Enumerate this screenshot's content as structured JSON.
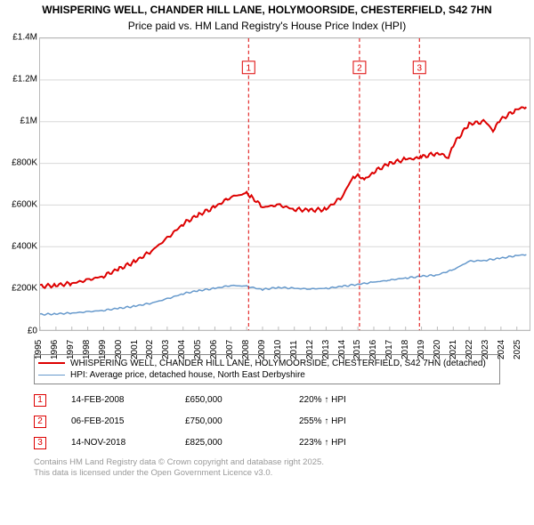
{
  "chart": {
    "title_line1": "WHISPERING WELL, CHANDER HILL LANE, HOLYMOORSIDE, CHESTERFIELD, S42 7HN",
    "title_line2": "Price paid vs. HM Land Registry's House Price Index (HPI)",
    "type": "line",
    "background_color": "#ffffff",
    "plot_border_color": "#bbbbbb",
    "grid_color": "#d8d8d8",
    "label_color": "#000000",
    "label_fontsize": 10,
    "title_fontsize": 12,
    "xlim": [
      1995,
      2025.8
    ],
    "ylim": [
      0,
      1400000
    ],
    "yticks": [
      0,
      200000,
      400000,
      600000,
      800000,
      1000000,
      1200000,
      1400000
    ],
    "ytick_labels": [
      "£0",
      "£200K",
      "£400K",
      "£600K",
      "£800K",
      "£1M",
      "£1.2M",
      "£1.4M"
    ],
    "xticks": [
      1995,
      1996,
      1997,
      1998,
      1999,
      2000,
      2001,
      2002,
      2003,
      2004,
      2005,
      2006,
      2007,
      2008,
      2009,
      2010,
      2011,
      2012,
      2013,
      2014,
      2015,
      2016,
      2017,
      2018,
      2019,
      2020,
      2021,
      2022,
      2023,
      2024,
      2025
    ],
    "series": [
      {
        "name": "WHISPERING WELL, CHANDER HILL LANE, HOLYMOORSIDE, CHESTERFIELD, S42 7HN (detached)",
        "color": "#dd0000",
        "line_width": 2,
        "noise": 10000,
        "points": [
          [
            1995,
            210000
          ],
          [
            1996,
            215000
          ],
          [
            1997,
            225000
          ],
          [
            1998,
            240000
          ],
          [
            1999,
            260000
          ],
          [
            2000,
            295000
          ],
          [
            2001,
            330000
          ],
          [
            2002,
            380000
          ],
          [
            2003,
            440000
          ],
          [
            2004,
            510000
          ],
          [
            2005,
            555000
          ],
          [
            2006,
            590000
          ],
          [
            2007,
            640000
          ],
          [
            2008,
            655000
          ],
          [
            2008.3,
            640000
          ],
          [
            2009,
            590000
          ],
          [
            2010,
            600000
          ],
          [
            2011,
            580000
          ],
          [
            2012,
            575000
          ],
          [
            2013,
            580000
          ],
          [
            2014,
            640000
          ],
          [
            2014.7,
            735000
          ],
          [
            2015,
            745000
          ],
          [
            2015.4,
            720000
          ],
          [
            2016,
            760000
          ],
          [
            2017,
            800000
          ],
          [
            2018,
            820000
          ],
          [
            2018.9,
            825000
          ],
          [
            2019,
            830000
          ],
          [
            2020,
            850000
          ],
          [
            2020.7,
            830000
          ],
          [
            2021,
            890000
          ],
          [
            2022,
            990000
          ],
          [
            2023,
            1000000
          ],
          [
            2023.5,
            960000
          ],
          [
            2024,
            1010000
          ],
          [
            2025,
            1060000
          ],
          [
            2025.6,
            1070000
          ]
        ]
      },
      {
        "name": "HPI: Average price, detached house, North East Derbyshire",
        "color": "#6699cc",
        "line_width": 1.5,
        "noise": 4000,
        "points": [
          [
            1995,
            75000
          ],
          [
            1996,
            78000
          ],
          [
            1997,
            82000
          ],
          [
            1998,
            88000
          ],
          [
            1999,
            95000
          ],
          [
            2000,
            105000
          ],
          [
            2001,
            115000
          ],
          [
            2002,
            130000
          ],
          [
            2003,
            150000
          ],
          [
            2004,
            175000
          ],
          [
            2005,
            190000
          ],
          [
            2006,
            200000
          ],
          [
            2007,
            215000
          ],
          [
            2008,
            210000
          ],
          [
            2009,
            195000
          ],
          [
            2010,
            205000
          ],
          [
            2011,
            200000
          ],
          [
            2012,
            198000
          ],
          [
            2013,
            200000
          ],
          [
            2014,
            210000
          ],
          [
            2015,
            220000
          ],
          [
            2016,
            230000
          ],
          [
            2017,
            240000
          ],
          [
            2018,
            250000
          ],
          [
            2019,
            258000
          ],
          [
            2020,
            265000
          ],
          [
            2021,
            290000
          ],
          [
            2022,
            330000
          ],
          [
            2023,
            335000
          ],
          [
            2024,
            345000
          ],
          [
            2025,
            358000
          ],
          [
            2025.6,
            362000
          ]
        ]
      }
    ],
    "event_markers": {
      "color": "#dd0000",
      "dash": "4,3",
      "line_width": 1,
      "box_size": 14,
      "items": [
        {
          "n": "1",
          "x": 2008.12,
          "y_box": 1260000
        },
        {
          "n": "2",
          "x": 2015.1,
          "y_box": 1260000
        },
        {
          "n": "3",
          "x": 2018.87,
          "y_box": 1260000
        }
      ]
    }
  },
  "legend": {
    "border_color": "#888888",
    "items": [
      {
        "color": "#dd0000",
        "width": 2,
        "label": "WHISPERING WELL, CHANDER HILL LANE, HOLYMOORSIDE, CHESTERFIELD, S42 7HN (detached)"
      },
      {
        "color": "#6699cc",
        "width": 1.5,
        "label": "HPI: Average price, detached house, North East Derbyshire"
      }
    ]
  },
  "events_table": {
    "marker_color": "#dd0000",
    "rows": [
      {
        "n": "1",
        "date": "14-FEB-2008",
        "price": "£650,000",
        "delta": "220% ↑ HPI"
      },
      {
        "n": "2",
        "date": "06-FEB-2015",
        "price": "£750,000",
        "delta": "255% ↑ HPI"
      },
      {
        "n": "3",
        "date": "14-NOV-2018",
        "price": "£825,000",
        "delta": "223% ↑ HPI"
      }
    ]
  },
  "attribution": {
    "line1": "Contains HM Land Registry data © Crown copyright and database right 2025.",
    "line2": "This data is licensed under the Open Government Licence v3.0."
  }
}
